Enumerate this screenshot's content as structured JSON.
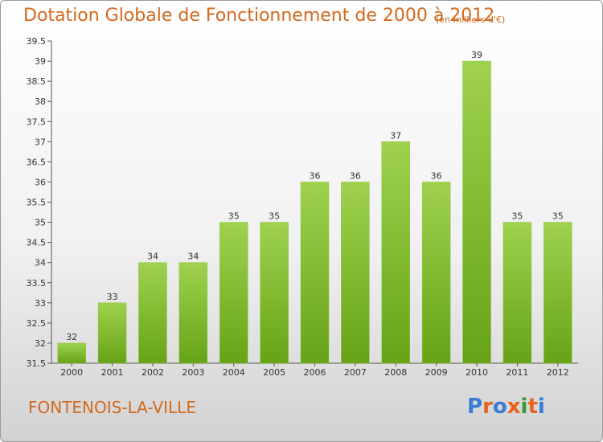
{
  "title": "Dotation Globale de Fonctionnement de 2000 à 2012",
  "unit_label": "(en milliers d'€)",
  "commune": "FONTENOIS-LA-VILLE",
  "logo": {
    "text": "Proxiti",
    "letter_colors": [
      "#3a7bd5",
      "#e8641b",
      "#3a7bd5",
      "#e8641b",
      "#2e9d3a",
      "#e8641b",
      "#3a7bd5"
    ]
  },
  "colors": {
    "bar_top": "#9fd24f",
    "bar_bottom": "#66a316",
    "axis": "#555555",
    "grid": "#c8c8c8",
    "title": "#d2691e"
  },
  "chart_data": {
    "type": "bar",
    "title": "Dotation Globale de Fonctionnement de 2000 à 2012",
    "subtitle": "(en milliers d'€)",
    "categories": [
      "2000",
      "2001",
      "2002",
      "2003",
      "2004",
      "2005",
      "2006",
      "2007",
      "2008",
      "2009",
      "2010",
      "2011",
      "2012"
    ],
    "values": [
      32,
      33,
      34,
      34,
      35,
      35,
      36,
      36,
      37,
      36,
      39,
      35,
      35
    ],
    "xlabel": "",
    "ylabel": "",
    "ylim": [
      31.5,
      39.5
    ],
    "yticks": [
      31.5,
      32,
      32.5,
      33,
      33.5,
      34,
      34.5,
      35,
      35.5,
      36,
      36.5,
      37,
      37.5,
      38,
      38.5,
      39,
      39.5
    ],
    "grid": false,
    "legend": "none"
  }
}
